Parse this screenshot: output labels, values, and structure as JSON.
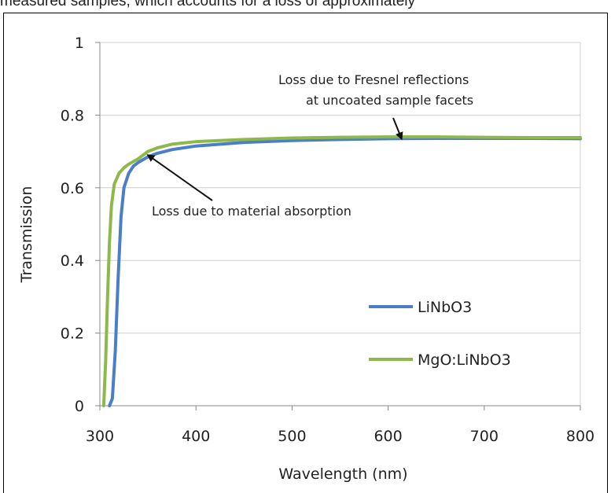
{
  "caption": "measured samples, which accounts for a loss of approximately",
  "chart_data": {
    "type": "line",
    "xlabel": "Wavelength (nm)",
    "ylabel": "Transmission",
    "xlim": [
      300,
      800
    ],
    "ylim": [
      0,
      1
    ],
    "xticks": [
      "300",
      "400",
      "500",
      "600",
      "700",
      "800"
    ],
    "yticks": [
      "0",
      "0.2",
      "0.4",
      "0.6",
      "0.8",
      "1"
    ],
    "grid": "horizontal",
    "legend_position": "lower-right",
    "series": [
      {
        "name": "LiNbO3",
        "color": "#4a7ec8",
        "x": [
          310,
          313,
          316,
          319,
          322,
          325,
          330,
          335,
          340,
          350,
          360,
          375,
          400,
          450,
          500,
          550,
          600,
          650,
          700,
          750,
          800
        ],
        "y": [
          0.0,
          0.02,
          0.15,
          0.35,
          0.52,
          0.6,
          0.64,
          0.66,
          0.67,
          0.685,
          0.695,
          0.705,
          0.715,
          0.725,
          0.73,
          0.733,
          0.735,
          0.736,
          0.736,
          0.736,
          0.735
        ]
      },
      {
        "name": "MgO:LiNbO3",
        "color": "#8fb84a",
        "x": [
          304,
          306,
          308,
          310,
          312,
          315,
          320,
          325,
          330,
          340,
          350,
          360,
          375,
          400,
          450,
          500,
          550,
          600,
          650,
          700,
          750,
          800
        ],
        "y": [
          0.0,
          0.12,
          0.3,
          0.45,
          0.55,
          0.61,
          0.64,
          0.655,
          0.665,
          0.68,
          0.7,
          0.71,
          0.72,
          0.727,
          0.733,
          0.737,
          0.739,
          0.74,
          0.74,
          0.739,
          0.738,
          0.738
        ]
      }
    ],
    "annotations": [
      {
        "text_lines": [
          "Loss due to Fresnel reflections",
          "at uncoated sample facets"
        ],
        "arrow_to": [
          614,
          0.735
        ]
      },
      {
        "text_lines": [
          "Loss due to material absorption"
        ],
        "arrow_to": [
          350,
          0.69
        ]
      }
    ]
  }
}
